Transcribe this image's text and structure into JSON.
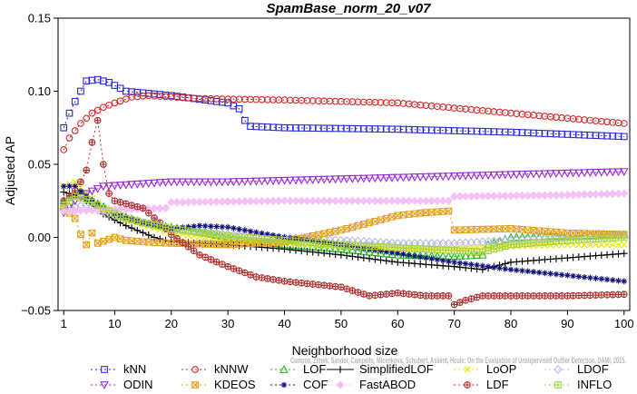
{
  "chart_data": {
    "type": "line",
    "title": "SpamBase_norm_20_v07",
    "xlabel": "Neighborhood size",
    "ylabel": "Adjusted AP",
    "xlim": [
      0,
      101
    ],
    "ylim": [
      -0.05,
      0.15
    ],
    "xticks": [
      1,
      10,
      20,
      30,
      40,
      50,
      60,
      70,
      80,
      90,
      100
    ],
    "yticks": [
      -0.05,
      0.0,
      0.05,
      0.1,
      0.15
    ],
    "ytick_labels": [
      "−0.05",
      "0.00",
      "0.05",
      "0.10",
      "0.15"
    ],
    "grid": false,
    "legend_position": "bottom",
    "watermark": "Campos, Zimek, Sander, Campello, Micenkova, Schubert, Assent, Houle: On the Evaluation of Unsupervised Outlier Detection. DAMI, 2015.",
    "series": [
      {
        "name": "kNN",
        "color": "#2a2ad6",
        "marker": "square",
        "dash": "2,3",
        "knots": [
          [
            1,
            0.075
          ],
          [
            2,
            0.085
          ],
          [
            3,
            0.093
          ],
          [
            4,
            0.1
          ],
          [
            5,
            0.107
          ],
          [
            7,
            0.108
          ],
          [
            9,
            0.106
          ],
          [
            12,
            0.1
          ],
          [
            20,
            0.097
          ],
          [
            30,
            0.092
          ],
          [
            32,
            0.088
          ],
          [
            33,
            0.08
          ],
          [
            34,
            0.076
          ],
          [
            40,
            0.075
          ],
          [
            60,
            0.074
          ],
          [
            80,
            0.072
          ],
          [
            100,
            0.069
          ]
        ]
      },
      {
        "name": "kNNW",
        "color": "#d62a2a",
        "marker": "circle",
        "dash": "2,3",
        "knots": [
          [
            1,
            0.06
          ],
          [
            2,
            0.068
          ],
          [
            4,
            0.078
          ],
          [
            6,
            0.085
          ],
          [
            8,
            0.089
          ],
          [
            10,
            0.092
          ],
          [
            13,
            0.096
          ],
          [
            16,
            0.097
          ],
          [
            25,
            0.095
          ],
          [
            40,
            0.094
          ],
          [
            60,
            0.092
          ],
          [
            80,
            0.085
          ],
          [
            100,
            0.078
          ]
        ]
      },
      {
        "name": "LOF",
        "color": "#22bb22",
        "marker": "triangle-up",
        "dash": "2,3",
        "knots": [
          [
            1,
            0.025
          ],
          [
            4,
            0.032
          ],
          [
            6,
            0.025
          ],
          [
            10,
            0.017
          ],
          [
            15,
            0.01
          ],
          [
            20,
            0.007
          ],
          [
            30,
            0.0
          ],
          [
            40,
            -0.005
          ],
          [
            50,
            -0.008
          ],
          [
            60,
            -0.012
          ],
          [
            70,
            -0.013
          ],
          [
            75,
            -0.012
          ],
          [
            76,
            -0.005
          ],
          [
            80,
            0.0
          ],
          [
            100,
            0.002
          ]
        ]
      },
      {
        "name": "SimplifiedLOF",
        "color": "#000000",
        "marker": "plus",
        "dash": "",
        "knots": [
          [
            1,
            0.031
          ],
          [
            3,
            0.029
          ],
          [
            5,
            0.025
          ],
          [
            8,
            0.016
          ],
          [
            12,
            0.008
          ],
          [
            17,
            0.0
          ],
          [
            20,
            -0.003
          ],
          [
            30,
            -0.005
          ],
          [
            40,
            -0.008
          ],
          [
            50,
            -0.012
          ],
          [
            60,
            -0.017
          ],
          [
            70,
            -0.02
          ],
          [
            75,
            -0.022
          ],
          [
            80,
            -0.017
          ],
          [
            90,
            -0.014
          ],
          [
            100,
            -0.011
          ]
        ]
      },
      {
        "name": "LoOP",
        "color": "#e6e600",
        "marker": "x",
        "dash": "2,3",
        "knots": [
          [
            1,
            0.035
          ],
          [
            3,
            0.038
          ],
          [
            5,
            0.03
          ],
          [
            8,
            0.02
          ],
          [
            12,
            0.012
          ],
          [
            20,
            0.003
          ],
          [
            30,
            -0.002
          ],
          [
            40,
            -0.004
          ],
          [
            50,
            -0.006
          ],
          [
            60,
            -0.008
          ],
          [
            70,
            -0.008
          ],
          [
            80,
            -0.006
          ],
          [
            90,
            -0.005
          ],
          [
            100,
            -0.005
          ]
        ]
      },
      {
        "name": "LDOF",
        "color": "#b8b8e6",
        "marker": "diamond",
        "dash": "2,3",
        "knots": [
          [
            1,
            0.02
          ],
          [
            5,
            0.022
          ],
          [
            10,
            0.015
          ],
          [
            15,
            0.01
          ],
          [
            20,
            0.006
          ],
          [
            30,
            0.002
          ],
          [
            40,
            0.0
          ],
          [
            50,
            -0.002
          ],
          [
            60,
            -0.004
          ],
          [
            70,
            -0.004
          ],
          [
            80,
            -0.002
          ],
          [
            90,
            0.0
          ],
          [
            100,
            0.001
          ]
        ]
      },
      {
        "name": "ODIN",
        "color": "#9a2ad6",
        "marker": "triangle-down",
        "dash": "2,3",
        "knots": [
          [
            1,
            0.017
          ],
          [
            3,
            0.025
          ],
          [
            5,
            0.03
          ],
          [
            8,
            0.035
          ],
          [
            12,
            0.036
          ],
          [
            20,
            0.038
          ],
          [
            30,
            0.038
          ],
          [
            40,
            0.039
          ],
          [
            50,
            0.04
          ],
          [
            60,
            0.041
          ],
          [
            70,
            0.042
          ],
          [
            80,
            0.043
          ],
          [
            90,
            0.044
          ],
          [
            100,
            0.045
          ]
        ]
      },
      {
        "name": "KDEOS",
        "color": "#e6a020",
        "marker": "square-x",
        "dash": "2,3",
        "knots": [
          [
            1,
            0.02
          ],
          [
            3,
            0.013
          ],
          [
            4,
            0.002
          ],
          [
            5,
            -0.005
          ],
          [
            6,
            0.003
          ],
          [
            7,
            -0.004
          ],
          [
            10,
            0.0
          ],
          [
            12,
            -0.002
          ],
          [
            15,
            -0.003
          ],
          [
            20,
            -0.004
          ],
          [
            30,
            -0.005
          ],
          [
            40,
            -0.003
          ],
          [
            50,
            0.005
          ],
          [
            60,
            0.015
          ],
          [
            65,
            0.017
          ],
          [
            69,
            0.018
          ],
          [
            70,
            0.005
          ],
          [
            80,
            0.006
          ],
          [
            90,
            0.003
          ],
          [
            100,
            0.002
          ]
        ]
      },
      {
        "name": "COF",
        "color": "#10107a",
        "marker": "asterisk",
        "dash": "2,3",
        "knots": [
          [
            1,
            0.035
          ],
          [
            3,
            0.035
          ],
          [
            5,
            0.028
          ],
          [
            8,
            0.02
          ],
          [
            10,
            0.016
          ],
          [
            15,
            0.01
          ],
          [
            20,
            0.006
          ],
          [
            25,
            0.008
          ],
          [
            30,
            0.007
          ],
          [
            40,
            0.0
          ],
          [
            50,
            -0.005
          ],
          [
            60,
            -0.011
          ],
          [
            70,
            -0.017
          ],
          [
            80,
            -0.022
          ],
          [
            90,
            -0.026
          ],
          [
            100,
            -0.03
          ]
        ]
      },
      {
        "name": "FastABOD",
        "color": "#f5c0f5",
        "marker": "diamond-solid",
        "dash": "2,3",
        "knots": [
          [
            1,
            0.018
          ],
          [
            10,
            0.019
          ],
          [
            19,
            0.02
          ],
          [
            20,
            0.024
          ],
          [
            40,
            0.025
          ],
          [
            60,
            0.025
          ],
          [
            69,
            0.025
          ],
          [
            70,
            0.028
          ],
          [
            90,
            0.029
          ],
          [
            100,
            0.03
          ]
        ]
      },
      {
        "name": "LDF",
        "color": "#b03030",
        "marker": "circle-plus",
        "dash": "2,3",
        "knots": [
          [
            1,
            0.025
          ],
          [
            3,
            0.032
          ],
          [
            4,
            0.038
          ],
          [
            5,
            0.046
          ],
          [
            6,
            0.065
          ],
          [
            7,
            0.08
          ],
          [
            8,
            0.05
          ],
          [
            9,
            0.03
          ],
          [
            10,
            0.025
          ],
          [
            13,
            0.022
          ],
          [
            15,
            0.02
          ],
          [
            18,
            0.01
          ],
          [
            20,
            0.002
          ],
          [
            25,
            -0.012
          ],
          [
            30,
            -0.02
          ],
          [
            35,
            -0.027
          ],
          [
            40,
            -0.03
          ],
          [
            50,
            -0.034
          ],
          [
            55,
            -0.04
          ],
          [
            60,
            -0.038
          ],
          [
            65,
            -0.04
          ],
          [
            69,
            -0.04
          ],
          [
            70,
            -0.046
          ],
          [
            72,
            -0.043
          ],
          [
            75,
            -0.04
          ],
          [
            80,
            -0.04
          ],
          [
            90,
            -0.04
          ],
          [
            100,
            -0.039
          ]
        ]
      },
      {
        "name": "INFLO",
        "color": "#a6d23a",
        "marker": "square-plus",
        "dash": "2,3",
        "knots": [
          [
            1,
            0.022
          ],
          [
            3,
            0.028
          ],
          [
            5,
            0.026
          ],
          [
            8,
            0.02
          ],
          [
            12,
            0.013
          ],
          [
            20,
            0.006
          ],
          [
            30,
            0.001
          ],
          [
            40,
            -0.002
          ],
          [
            50,
            -0.005
          ],
          [
            60,
            -0.007
          ],
          [
            70,
            -0.009
          ],
          [
            75,
            -0.01
          ],
          [
            80,
            -0.005
          ],
          [
            90,
            -0.002
          ],
          [
            100,
            0.0
          ]
        ]
      }
    ]
  }
}
